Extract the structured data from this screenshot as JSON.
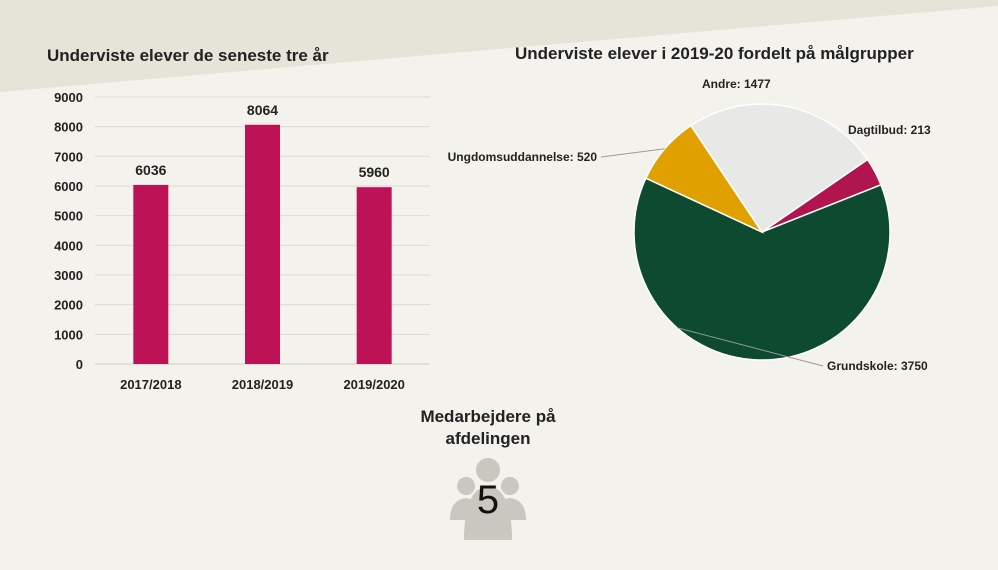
{
  "colors": {
    "background": "#f3f2ec",
    "top_band": "#e6e4d8",
    "bar": "#be1256",
    "grundskole": "#0d4a30",
    "ungdom": "#e0a100",
    "andre": "#e8e8e6",
    "dagtilbud": "#b0154f",
    "staff_icon": "#c9c7c0"
  },
  "chart_data": [
    {
      "type": "bar",
      "title": "Underviste elever de seneste tre år",
      "categories": [
        "2017/2018",
        "2018/2019",
        "2019/2020"
      ],
      "values": [
        6036,
        8064,
        5960
      ],
      "data_labels": [
        "6036",
        "8064",
        "5960"
      ],
      "ylim": [
        0,
        9000
      ],
      "yticks": [
        "0",
        "1000",
        "2000",
        "3000",
        "4000",
        "5000",
        "6000",
        "7000",
        "8000",
        "9000"
      ],
      "grid": true
    },
    {
      "type": "pie",
      "title": "Underviste elever i 2019-20 fordelt på målgrupper",
      "slices": [
        {
          "key": "dagtilbud",
          "name": "Dagtilbud",
          "value": 213,
          "label": "Dagtilbud: 213"
        },
        {
          "key": "grundskole",
          "name": "Grundskole",
          "value": 3750,
          "label": "Grundskole: 3750"
        },
        {
          "key": "ungdom",
          "name": "Ungdomsuddannelse",
          "value": 520,
          "label": "Ungdomsuddannelse:  520"
        },
        {
          "key": "andre",
          "name": "Andre",
          "value": 1477,
          "label": "Andre: 1477"
        }
      ]
    }
  ],
  "staff": {
    "title": "Medarbejdere på afdelingen",
    "count": "5",
    "icon": "people-group-icon"
  }
}
